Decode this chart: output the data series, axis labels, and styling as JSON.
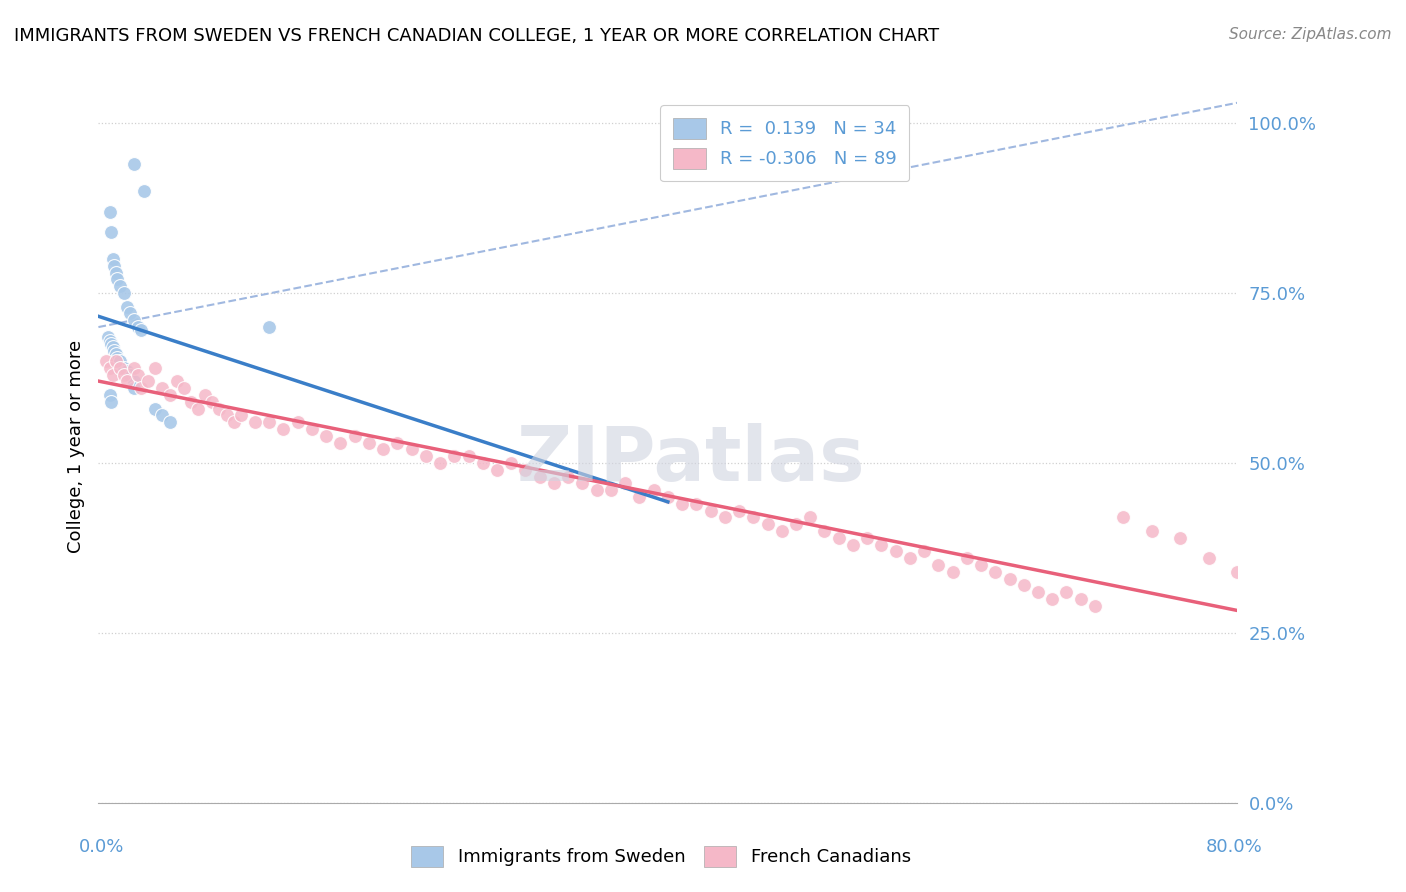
{
  "title": "IMMIGRANTS FROM SWEDEN VS FRENCH CANADIAN COLLEGE, 1 YEAR OR MORE CORRELATION CHART",
  "source": "Source: ZipAtlas.com",
  "ylabel": "College, 1 year or more",
  "r1": 0.139,
  "n1": 34,
  "r2": -0.306,
  "n2": 89,
  "blue_scatter_color": "#a8c8e8",
  "pink_scatter_color": "#f5b8c8",
  "blue_line_color": "#3a7ec8",
  "pink_line_color": "#e8607a",
  "dashed_line_color": "#a0b8e0",
  "watermark_color": "#d8dce8",
  "ytick_color": "#5b9bd5",
  "xmin": 0.0,
  "xmax": 0.8,
  "ymin": 0.0,
  "ymax": 1.05,
  "sweden_x": [
    0.025,
    0.032,
    0.008,
    0.009,
    0.01,
    0.011,
    0.012,
    0.013,
    0.015,
    0.018,
    0.02,
    0.022,
    0.025,
    0.028,
    0.03,
    0.007,
    0.008,
    0.009,
    0.01,
    0.011,
    0.012,
    0.013,
    0.015,
    0.018,
    0.02,
    0.022,
    0.025,
    0.008,
    0.009,
    0.04,
    0.045,
    0.05,
    0.12,
    0.025
  ],
  "sweden_y": [
    0.94,
    0.9,
    0.87,
    0.84,
    0.8,
    0.79,
    0.78,
    0.77,
    0.76,
    0.75,
    0.73,
    0.72,
    0.71,
    0.7,
    0.695,
    0.685,
    0.68,
    0.675,
    0.67,
    0.665,
    0.66,
    0.655,
    0.65,
    0.64,
    0.635,
    0.63,
    0.62,
    0.6,
    0.59,
    0.58,
    0.57,
    0.56,
    0.7,
    0.61
  ],
  "french_x": [
    0.005,
    0.008,
    0.01,
    0.012,
    0.015,
    0.018,
    0.02,
    0.025,
    0.028,
    0.03,
    0.035,
    0.04,
    0.045,
    0.05,
    0.055,
    0.06,
    0.065,
    0.07,
    0.075,
    0.08,
    0.085,
    0.09,
    0.095,
    0.1,
    0.11,
    0.12,
    0.13,
    0.14,
    0.15,
    0.16,
    0.17,
    0.18,
    0.19,
    0.2,
    0.21,
    0.22,
    0.23,
    0.24,
    0.25,
    0.26,
    0.27,
    0.28,
    0.29,
    0.3,
    0.31,
    0.32,
    0.33,
    0.34,
    0.35,
    0.36,
    0.37,
    0.38,
    0.39,
    0.4,
    0.41,
    0.42,
    0.43,
    0.44,
    0.45,
    0.46,
    0.47,
    0.48,
    0.49,
    0.5,
    0.51,
    0.52,
    0.53,
    0.54,
    0.55,
    0.56,
    0.57,
    0.58,
    0.59,
    0.6,
    0.61,
    0.62,
    0.63,
    0.64,
    0.65,
    0.66,
    0.67,
    0.68,
    0.69,
    0.7,
    0.72,
    0.74,
    0.76,
    0.78,
    0.8
  ],
  "french_y": [
    0.65,
    0.64,
    0.63,
    0.65,
    0.64,
    0.63,
    0.62,
    0.64,
    0.63,
    0.61,
    0.62,
    0.64,
    0.61,
    0.6,
    0.62,
    0.61,
    0.59,
    0.58,
    0.6,
    0.59,
    0.58,
    0.57,
    0.56,
    0.57,
    0.56,
    0.56,
    0.55,
    0.56,
    0.55,
    0.54,
    0.53,
    0.54,
    0.53,
    0.52,
    0.53,
    0.52,
    0.51,
    0.5,
    0.51,
    0.51,
    0.5,
    0.49,
    0.5,
    0.49,
    0.48,
    0.47,
    0.48,
    0.47,
    0.46,
    0.46,
    0.47,
    0.45,
    0.46,
    0.45,
    0.44,
    0.44,
    0.43,
    0.42,
    0.43,
    0.42,
    0.41,
    0.4,
    0.41,
    0.42,
    0.4,
    0.39,
    0.38,
    0.39,
    0.38,
    0.37,
    0.36,
    0.37,
    0.35,
    0.34,
    0.36,
    0.35,
    0.34,
    0.33,
    0.32,
    0.31,
    0.3,
    0.31,
    0.3,
    0.29,
    0.42,
    0.4,
    0.39,
    0.36,
    0.34
  ]
}
